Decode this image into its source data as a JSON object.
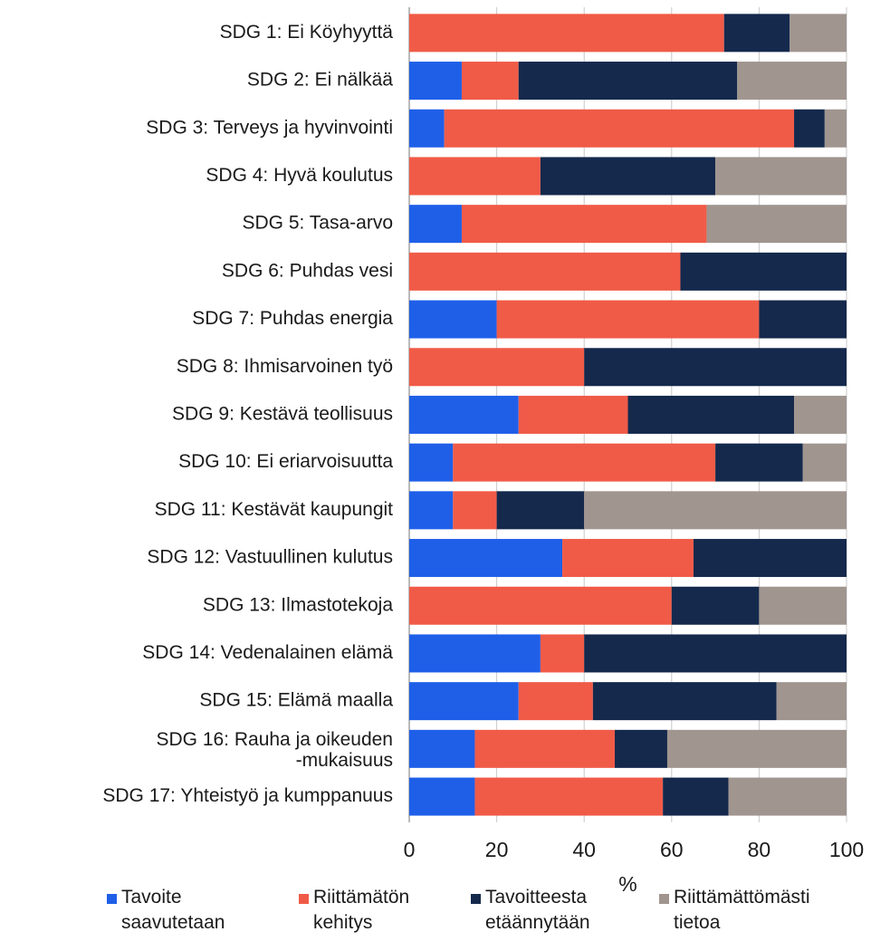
{
  "chart_data": {
    "type": "bar",
    "orientation": "horizontal",
    "stacked": true,
    "categories": [
      "SDG 1: Ei Köyhyyttä",
      "SDG 2: Ei nälkää",
      "SDG 3: Terveys ja hyvinvointi",
      "SDG 4: Hyvä koulutus",
      "SDG 5: Tasa-arvo",
      "SDG 6: Puhdas vesi",
      "SDG 7: Puhdas energia",
      "SDG 8: Ihmisarvoinen työ",
      "SDG 9: Kestävä teollisuus",
      "SDG 10: Ei eriarvoisuutta",
      "SDG 11: Kestävät kaupungit",
      "SDG 12: Vastuullinen kulutus",
      "SDG 13: Ilmastotekoja",
      "SDG 14: Vedenalainen elämä",
      "SDG 15: Elämä maalla",
      "SDG 16: Rauha ja oikeuden -mukaisuus",
      "SDG 17: Yhteistyö ja kumppanuus"
    ],
    "series": [
      {
        "name": "Tavoite saavutetaan",
        "color": "#1f5fe8",
        "values": [
          0,
          12,
          8,
          0,
          12,
          0,
          20,
          0,
          25,
          10,
          10,
          35,
          0,
          30,
          25,
          15,
          15
        ]
      },
      {
        "name": "Riittämätön kehitys",
        "color": "#f05b47",
        "values": [
          72,
          13,
          80,
          30,
          56,
          62,
          60,
          40,
          25,
          60,
          10,
          30,
          60,
          10,
          17,
          32,
          43
        ]
      },
      {
        "name": "Tavoitteesta etäännytään",
        "color": "#15294d",
        "values": [
          15,
          50,
          7,
          40,
          0,
          38,
          20,
          60,
          38,
          20,
          20,
          35,
          20,
          60,
          42,
          12,
          15
        ]
      },
      {
        "name": "Riittämättömästi tietoa",
        "color": "#a0958f",
        "values": [
          13,
          25,
          5,
          30,
          32,
          0,
          0,
          0,
          12,
          10,
          60,
          0,
          20,
          0,
          16,
          41,
          27
        ]
      }
    ],
    "xlabel": "%",
    "xlim": [
      0,
      100
    ],
    "xticks": [
      0,
      20,
      40,
      60,
      80,
      100
    ],
    "grid": true,
    "legend_position": "bottom"
  }
}
